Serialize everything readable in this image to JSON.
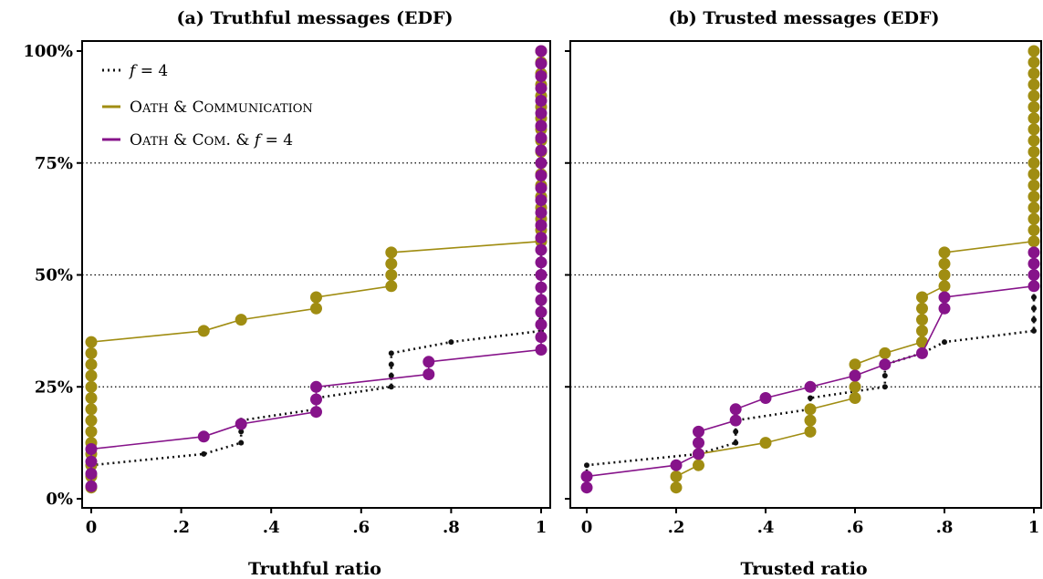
{
  "colors": {
    "f4": "#111111",
    "oath_comm": "#a08d12",
    "oath_com_f4": "#86138a"
  },
  "legend": [
    {
      "key": "f4",
      "label": "f = 4",
      "style": "dotted"
    },
    {
      "key": "oath_comm",
      "label": "Oath & Communication",
      "style": "solid"
    },
    {
      "key": "oath_com_f4",
      "label": "Oath & Com. & f = 4",
      "style": "solid"
    }
  ],
  "chart_data": [
    {
      "type": "line",
      "title": "(a) Truthful messages (EDF)",
      "xlabel": "Truthful ratio",
      "ylabel": "",
      "xlim": [
        0,
        1
      ],
      "ylim": [
        0,
        100
      ],
      "x_ticks": [
        0,
        0.2,
        0.4,
        0.6,
        0.8,
        1
      ],
      "x_tick_labels": [
        "0",
        ".2",
        ".4",
        ".6",
        ".8",
        "1"
      ],
      "y_ticks": [
        0,
        25,
        50,
        75,
        100
      ],
      "y_tick_labels": [
        "0%",
        "25%",
        "50%",
        "75%",
        "100%"
      ],
      "hlines": [
        25,
        50,
        75
      ],
      "legend_position": "top-left",
      "series": [
        {
          "key": "f4",
          "points": [
            [
              0,
              2.5
            ],
            [
              0,
              5
            ],
            [
              0,
              7.5
            ],
            [
              0.25,
              10
            ],
            [
              0.333,
              12.5
            ],
            [
              0.333,
              15
            ],
            [
              0.333,
              17.5
            ],
            [
              0.5,
              20
            ],
            [
              0.5,
              22.5
            ],
            [
              0.667,
              25
            ],
            [
              0.667,
              27.5
            ],
            [
              0.667,
              30
            ],
            [
              0.667,
              32.5
            ],
            [
              0.8,
              35
            ],
            [
              1,
              37.5
            ],
            [
              1,
              40
            ],
            [
              1,
              42.5
            ],
            [
              1,
              45
            ],
            [
              1,
              47.5
            ],
            [
              1,
              50
            ],
            [
              1,
              52.5
            ],
            [
              1,
              55
            ],
            [
              1,
              57.5
            ],
            [
              1,
              60
            ],
            [
              1,
              62.5
            ],
            [
              1,
              65
            ],
            [
              1,
              67.5
            ],
            [
              1,
              70
            ],
            [
              1,
              72.5
            ],
            [
              1,
              75
            ],
            [
              1,
              77.5
            ],
            [
              1,
              80
            ],
            [
              1,
              82.5
            ],
            [
              1,
              85
            ],
            [
              1,
              87.5
            ],
            [
              1,
              90
            ],
            [
              1,
              92.5
            ],
            [
              1,
              95
            ],
            [
              1,
              97.5
            ],
            [
              1,
              100
            ]
          ]
        },
        {
          "key": "oath_comm",
          "points": [
            [
              0,
              2.5
            ],
            [
              0,
              5
            ],
            [
              0,
              7.5
            ],
            [
              0,
              10
            ],
            [
              0,
              12.5
            ],
            [
              0,
              15
            ],
            [
              0,
              17.5
            ],
            [
              0,
              20
            ],
            [
              0,
              22.5
            ],
            [
              0,
              25
            ],
            [
              0,
              27.5
            ],
            [
              0,
              30
            ],
            [
              0,
              32.5
            ],
            [
              0,
              35
            ],
            [
              0.25,
              37.5
            ],
            [
              0.333,
              40
            ],
            [
              0.5,
              42.5
            ],
            [
              0.5,
              45
            ],
            [
              0.667,
              47.5
            ],
            [
              0.667,
              50
            ],
            [
              0.667,
              52.5
            ],
            [
              0.667,
              55
            ],
            [
              1,
              57.5
            ],
            [
              1,
              60
            ],
            [
              1,
              62.5
            ],
            [
              1,
              65
            ],
            [
              1,
              67.5
            ],
            [
              1,
              70
            ],
            [
              1,
              72.5
            ],
            [
              1,
              75
            ],
            [
              1,
              77.5
            ],
            [
              1,
              80
            ],
            [
              1,
              82.5
            ],
            [
              1,
              85
            ],
            [
              1,
              87.5
            ],
            [
              1,
              90
            ],
            [
              1,
              92.5
            ],
            [
              1,
              95
            ],
            [
              1,
              97.5
            ],
            [
              1,
              100
            ]
          ]
        },
        {
          "key": "oath_com_f4",
          "points": [
            [
              0,
              2.8
            ],
            [
              0,
              5.6
            ],
            [
              0,
              8.3
            ],
            [
              0,
              11.1
            ],
            [
              0.25,
              13.9
            ],
            [
              0.333,
              16.7
            ],
            [
              0.5,
              19.4
            ],
            [
              0.5,
              22.2
            ],
            [
              0.5,
              25
            ],
            [
              0.75,
              27.8
            ],
            [
              0.75,
              30.6
            ],
            [
              1,
              33.3
            ],
            [
              1,
              36.1
            ],
            [
              1,
              38.9
            ],
            [
              1,
              41.7
            ],
            [
              1,
              44.4
            ],
            [
              1,
              47.2
            ],
            [
              1,
              50
            ],
            [
              1,
              52.8
            ],
            [
              1,
              55.6
            ],
            [
              1,
              58.3
            ],
            [
              1,
              61.1
            ],
            [
              1,
              63.9
            ],
            [
              1,
              66.7
            ],
            [
              1,
              69.4
            ],
            [
              1,
              72.2
            ],
            [
              1,
              75
            ],
            [
              1,
              77.8
            ],
            [
              1,
              80.6
            ],
            [
              1,
              83.3
            ],
            [
              1,
              86.1
            ],
            [
              1,
              88.9
            ],
            [
              1,
              91.7
            ],
            [
              1,
              94.4
            ],
            [
              1,
              97.2
            ],
            [
              1,
              100
            ]
          ]
        }
      ]
    },
    {
      "type": "line",
      "title": "(b) Trusted messages (EDF)",
      "xlabel": "Trusted ratio",
      "ylabel": "",
      "xlim": [
        0,
        1
      ],
      "ylim": [
        0,
        100
      ],
      "x_ticks": [
        0,
        0.2,
        0.4,
        0.6,
        0.8,
        1
      ],
      "x_tick_labels": [
        "0",
        ".2",
        ".4",
        ".6",
        ".8",
        "1"
      ],
      "y_ticks": [
        0,
        25,
        50,
        75,
        100
      ],
      "y_tick_labels": [
        "",
        "",
        "",
        "",
        ""
      ],
      "hlines": [
        25,
        50,
        75
      ],
      "series": [
        {
          "key": "f4",
          "points": [
            [
              0,
              2.5
            ],
            [
              0,
              5
            ],
            [
              0,
              7.5
            ],
            [
              0.25,
              10
            ],
            [
              0.333,
              12.5
            ],
            [
              0.333,
              15
            ],
            [
              0.333,
              17.5
            ],
            [
              0.5,
              20
            ],
            [
              0.5,
              22.5
            ],
            [
              0.667,
              25
            ],
            [
              0.667,
              27.5
            ],
            [
              0.667,
              30
            ],
            [
              0.75,
              32.5
            ],
            [
              0.8,
              35
            ],
            [
              1,
              37.5
            ],
            [
              1,
              40
            ],
            [
              1,
              42.5
            ],
            [
              1,
              45
            ],
            [
              1,
              47.5
            ],
            [
              1,
              50
            ],
            [
              1,
              52.5
            ],
            [
              1,
              55
            ],
            [
              1,
              57.5
            ],
            [
              1,
              60
            ],
            [
              1,
              62.5
            ],
            [
              1,
              65
            ],
            [
              1,
              67.5
            ],
            [
              1,
              70
            ],
            [
              1,
              72.5
            ],
            [
              1,
              75
            ],
            [
              1,
              77.5
            ],
            [
              1,
              80
            ],
            [
              1,
              82.5
            ],
            [
              1,
              85
            ],
            [
              1,
              87.5
            ],
            [
              1,
              90
            ],
            [
              1,
              92.5
            ],
            [
              1,
              95
            ],
            [
              1,
              97.5
            ],
            [
              1,
              100
            ]
          ]
        },
        {
          "key": "oath_comm",
          "points": [
            [
              0.2,
              2.5
            ],
            [
              0.2,
              5
            ],
            [
              0.25,
              7.5
            ],
            [
              0.25,
              10
            ],
            [
              0.4,
              12.5
            ],
            [
              0.5,
              15
            ],
            [
              0.5,
              17.5
            ],
            [
              0.5,
              20
            ],
            [
              0.6,
              22.5
            ],
            [
              0.6,
              25
            ],
            [
              0.6,
              27.5
            ],
            [
              0.6,
              30
            ],
            [
              0.667,
              32.5
            ],
            [
              0.75,
              35
            ],
            [
              0.75,
              37.5
            ],
            [
              0.75,
              40
            ],
            [
              0.75,
              42.5
            ],
            [
              0.75,
              45
            ],
            [
              0.8,
              47.5
            ],
            [
              0.8,
              50
            ],
            [
              0.8,
              52.5
            ],
            [
              0.8,
              55
            ],
            [
              1,
              57.5
            ],
            [
              1,
              60
            ],
            [
              1,
              62.5
            ],
            [
              1,
              65
            ],
            [
              1,
              67.5
            ],
            [
              1,
              70
            ],
            [
              1,
              72.5
            ],
            [
              1,
              75
            ],
            [
              1,
              77.5
            ],
            [
              1,
              80
            ],
            [
              1,
              82.5
            ],
            [
              1,
              85
            ],
            [
              1,
              87.5
            ],
            [
              1,
              90
            ],
            [
              1,
              92.5
            ],
            [
              1,
              95
            ],
            [
              1,
              97.5
            ],
            [
              1,
              100
            ]
          ]
        },
        {
          "key": "oath_com_f4",
          "points": [
            [
              0,
              2.5
            ],
            [
              0,
              5
            ],
            [
              0.2,
              7.5
            ],
            [
              0.25,
              10
            ],
            [
              0.25,
              12.5
            ],
            [
              0.25,
              15
            ],
            [
              0.333,
              17.5
            ],
            [
              0.333,
              20
            ],
            [
              0.4,
              22.5
            ],
            [
              0.5,
              25
            ],
            [
              0.6,
              27.5
            ],
            [
              0.667,
              30
            ],
            [
              0.75,
              32.5
            ],
            [
              0.8,
              42.5
            ],
            [
              0.8,
              45
            ],
            [
              1,
              47.5
            ],
            [
              1,
              50
            ],
            [
              1,
              52.5
            ],
            [
              1,
              55
            ]
          ]
        }
      ]
    }
  ]
}
